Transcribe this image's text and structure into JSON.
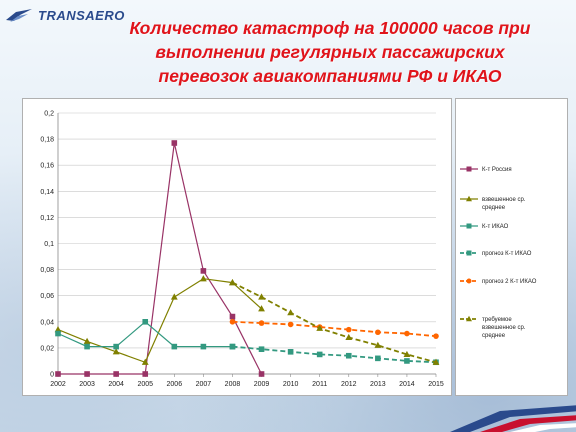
{
  "header": {
    "logo": "TRANSAERO",
    "title_lines": [
      "Количество катастроф на 100000 часов при",
      "выполнении регулярных пассажирских",
      "перевозок авиакомпаниями РФ и ИКАО"
    ]
  },
  "colors": {
    "title": "#e0141b",
    "russia": "#993366",
    "weighted": "#808000",
    "icao": "#339980",
    "forecast_icao": "#339980",
    "forecast2_icao": "#ff6600",
    "required": "#808000"
  },
  "chart_data": {
    "type": "line",
    "x": [
      "2002",
      "2003",
      "2004",
      "2005",
      "2006",
      "2007",
      "2008",
      "2009",
      "2010",
      "2011",
      "2012",
      "2013",
      "2014",
      "2015"
    ],
    "ylim": [
      0,
      0.2
    ],
    "yticks": [
      "0",
      "0,02",
      "0,04",
      "0,06",
      "0,08",
      "0,1",
      "0,12",
      "0,14",
      "0,16",
      "0,18",
      "0,2"
    ],
    "grid": true,
    "legend_position": "right",
    "series": [
      {
        "name": "К-т Россия",
        "key": "russia",
        "marker": "square",
        "dashed": false,
        "values": [
          0,
          0,
          0,
          0,
          0.177,
          0.079,
          0.044,
          0,
          null,
          null,
          null,
          null,
          null,
          null
        ]
      },
      {
        "name": "взвешенное ср. среднее",
        "key": "weighted",
        "marker": "triangle",
        "dashed": false,
        "values": [
          0.034,
          0.025,
          0.017,
          0.009,
          0.059,
          0.073,
          0.07,
          0.05,
          null,
          null,
          null,
          null,
          null,
          null
        ]
      },
      {
        "name": "К-т ИКАО",
        "key": "icao",
        "marker": "square",
        "dashed": false,
        "values": [
          0.031,
          0.021,
          0.021,
          0.04,
          0.021,
          0.021,
          0.021,
          null,
          null,
          null,
          null,
          null,
          null,
          null
        ]
      },
      {
        "name": "прогноз К-т ИКАО",
        "key": "forecast_icao",
        "marker": "square",
        "dashed": true,
        "values": [
          null,
          null,
          null,
          null,
          null,
          null,
          0.021,
          0.019,
          0.017,
          0.015,
          0.014,
          0.012,
          0.01,
          0.009
        ]
      },
      {
        "name": "прогноз 2 К-т ИКАО",
        "key": "forecast2_icao",
        "marker": "circle",
        "dashed": true,
        "values": [
          null,
          null,
          null,
          null,
          null,
          null,
          0.04,
          0.039,
          0.038,
          0.036,
          0.034,
          0.032,
          0.031,
          0.029
        ]
      },
      {
        "name": "требуемое взвешенное ср. среднее",
        "key": "required",
        "marker": "triangle",
        "dashed": true,
        "values": [
          null,
          null,
          null,
          null,
          null,
          null,
          0.07,
          0.059,
          0.047,
          0.035,
          0.028,
          0.022,
          0.015,
          0.009
        ]
      }
    ]
  },
  "legend_lines": [
    [
      "К-т Россия"
    ],
    [
      "взвешенное ср.",
      "среднее"
    ],
    [
      "К-т ИКАО"
    ],
    [
      "прогноз К-т ИКАО"
    ],
    [
      "прогноз 2 К-т ИКАО"
    ],
    [
      "требуемое",
      "взвешенное ср.",
      "среднее"
    ]
  ]
}
